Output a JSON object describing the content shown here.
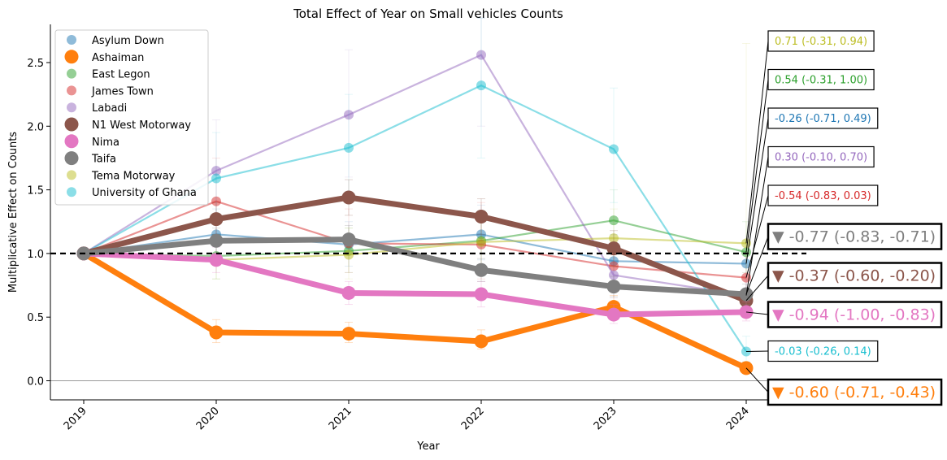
{
  "chart_data": {
    "type": "line",
    "title": "Total Effect of Year on Small vehicles Counts",
    "xlabel": "Year",
    "ylabel": "Multiplicative Effect on Counts",
    "categories": [
      "2019",
      "2020",
      "2021",
      "2022",
      "2023",
      "2024"
    ],
    "ylim": [
      -0.15,
      2.8
    ],
    "yticks": [
      "0.0",
      "0.5",
      "1.0",
      "1.5",
      "2.0",
      "2.5"
    ],
    "reference_line": 1.0,
    "zero_line": 0.0,
    "legend_position": "top-left",
    "series": [
      {
        "name": "Asylum Down",
        "color": "#1f77b4",
        "highlight": false,
        "values": [
          1.0,
          1.15,
          1.07,
          1.15,
          0.94,
          0.92
        ],
        "lower": [
          1.0,
          0.95,
          0.9,
          0.95,
          0.75,
          0.7
        ],
        "upper": [
          1.0,
          1.35,
          1.25,
          1.38,
          1.15,
          1.1
        ],
        "annotation": "-0.26 (-0.71, 0.49)"
      },
      {
        "name": "Ashaiman",
        "color": "#ff7f0e",
        "highlight": true,
        "values": [
          1.0,
          0.38,
          0.37,
          0.31,
          0.58,
          0.1
        ],
        "lower": [
          1.0,
          0.3,
          0.3,
          0.25,
          0.5,
          0.07
        ],
        "upper": [
          1.0,
          0.48,
          0.46,
          0.4,
          0.67,
          0.14
        ],
        "annotation": "▼ -0.60 (-0.71, -0.43)"
      },
      {
        "name": "East Legon",
        "color": "#2ca02c",
        "highlight": false,
        "values": [
          1.0,
          0.98,
          1.02,
          1.1,
          1.26,
          1.01
        ],
        "lower": [
          1.0,
          0.8,
          0.85,
          0.9,
          1.0,
          0.8
        ],
        "upper": [
          1.0,
          1.15,
          1.2,
          1.3,
          1.5,
          1.25
        ],
        "annotation": "0.54 (-0.31, 1.00)"
      },
      {
        "name": "James Town",
        "color": "#d62728",
        "highlight": false,
        "values": [
          1.0,
          1.41,
          1.08,
          1.07,
          0.9,
          0.81
        ],
        "lower": [
          1.0,
          1.1,
          0.85,
          0.8,
          0.7,
          0.65
        ],
        "upper": [
          1.0,
          1.75,
          1.35,
          1.4,
          1.1,
          1.0
        ],
        "annotation": "-0.54 (-0.83, 0.03)"
      },
      {
        "name": "Labadi",
        "color": "#9467bd",
        "highlight": false,
        "values": [
          1.0,
          1.65,
          2.09,
          2.56,
          0.83,
          0.67
        ],
        "lower": [
          1.0,
          1.3,
          1.6,
          2.0,
          0.65,
          0.5
        ],
        "upper": [
          1.0,
          2.05,
          2.6,
          2.85,
          1.05,
          0.85
        ],
        "annotation": "0.30 (-0.10, 0.70)"
      },
      {
        "name": "N1 West Motorway",
        "color": "#8c564b",
        "highlight": true,
        "values": [
          1.0,
          1.27,
          1.44,
          1.29,
          1.04,
          0.63
        ],
        "lower": [
          1.0,
          1.15,
          1.3,
          1.15,
          0.9,
          0.55
        ],
        "upper": [
          1.0,
          1.4,
          1.58,
          1.43,
          1.18,
          0.72
        ],
        "annotation": "▼ -0.37 (-0.60, -0.20)"
      },
      {
        "name": "Nima",
        "color": "#e377c2",
        "highlight": true,
        "values": [
          1.0,
          0.95,
          0.69,
          0.68,
          0.52,
          0.54
        ],
        "lower": [
          1.0,
          0.85,
          0.6,
          0.58,
          0.45,
          0.47
        ],
        "upper": [
          1.0,
          1.05,
          0.78,
          0.78,
          0.6,
          0.62
        ],
        "annotation": "▼ -0.94 (-1.00, -0.83)"
      },
      {
        "name": "Taifa",
        "color": "#7f7f7f",
        "highlight": true,
        "values": [
          1.0,
          1.1,
          1.11,
          0.87,
          0.74,
          0.68
        ],
        "lower": [
          1.0,
          1.0,
          1.0,
          0.78,
          0.66,
          0.6
        ],
        "upper": [
          1.0,
          1.2,
          1.22,
          0.96,
          0.82,
          0.76
        ],
        "annotation": "▼ -0.77 (-0.83, -0.71)"
      },
      {
        "name": "Tema Motorway",
        "color": "#bcbd22",
        "highlight": false,
        "values": [
          1.0,
          0.95,
          0.99,
          1.09,
          1.12,
          1.08
        ],
        "lower": [
          1.0,
          0.8,
          0.8,
          0.9,
          0.9,
          0.85
        ],
        "upper": [
          1.0,
          1.1,
          1.2,
          1.3,
          1.35,
          2.65
        ],
        "annotation": "0.71 (-0.31, 0.94)"
      },
      {
        "name": "University of Ghana",
        "color": "#17becf",
        "highlight": false,
        "values": [
          1.0,
          1.59,
          1.83,
          2.32,
          1.82,
          0.23
        ],
        "lower": [
          1.0,
          1.25,
          1.45,
          1.75,
          1.4,
          0.15
        ],
        "upper": [
          1.0,
          1.95,
          2.25,
          2.85,
          2.3,
          0.35
        ],
        "annotation": "-0.03 (-0.26, 0.14)"
      }
    ],
    "annotation_order": [
      8,
      2,
      0,
      4,
      3,
      7,
      5,
      6,
      9,
      1
    ]
  }
}
